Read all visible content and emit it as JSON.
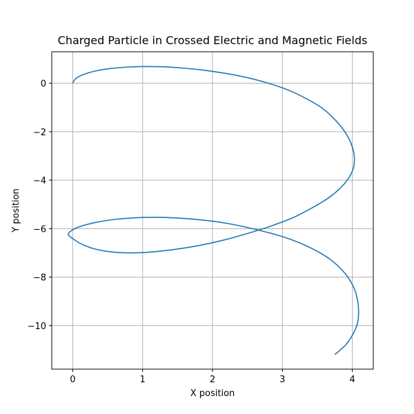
{
  "chart_data": {
    "type": "line",
    "title": "Charged Particle in Crossed Electric and Magnetic Fields",
    "xlabel": "X position",
    "ylabel": "Y position",
    "xlim": [
      -0.3,
      4.3
    ],
    "ylim": [
      -11.8,
      1.3
    ],
    "xticks": [
      0,
      1,
      2,
      3,
      4
    ],
    "xtick_labels": [
      "0",
      "1",
      "2",
      "3",
      "4"
    ],
    "yticks": [
      0,
      -2,
      -4,
      -6,
      -8,
      -10
    ],
    "ytick_labels": [
      "0",
      "−2",
      "−4",
      "−6",
      "−8",
      "−10"
    ],
    "grid": true,
    "series": [
      {
        "color": "#1f77b4",
        "x": [
          0.0,
          0.03,
          0.09,
          0.2,
          0.35,
          0.55,
          0.8,
          1.0,
          1.3,
          1.6,
          1.9,
          2.2,
          2.5,
          2.8,
          3.1,
          3.35,
          3.58,
          3.75,
          3.88,
          3.97,
          4.02,
          4.03,
          4.01,
          3.94,
          3.82,
          3.65,
          3.42,
          3.15,
          2.83,
          2.5,
          2.15,
          1.8,
          1.45,
          1.1,
          0.8,
          0.52,
          0.29,
          0.12,
          0.02,
          -0.05,
          -0.06,
          0.0,
          0.12,
          0.32,
          0.6,
          1.0,
          1.4,
          1.8,
          2.2,
          2.6,
          3.0,
          3.35,
          3.65,
          3.85,
          3.98,
          4.06,
          4.09,
          4.07,
          4.0,
          3.92,
          3.83,
          3.75
        ],
        "y": [
          0.0,
          0.15,
          0.28,
          0.41,
          0.52,
          0.61,
          0.67,
          0.69,
          0.68,
          0.62,
          0.53,
          0.4,
          0.23,
          0.0,
          -0.3,
          -0.65,
          -1.05,
          -1.5,
          -1.95,
          -2.4,
          -2.85,
          -3.2,
          -3.55,
          -3.95,
          -4.35,
          -4.75,
          -5.15,
          -5.55,
          -5.9,
          -6.2,
          -6.48,
          -6.7,
          -6.86,
          -6.97,
          -7.0,
          -6.95,
          -6.82,
          -6.63,
          -6.45,
          -6.3,
          -6.2,
          -6.05,
          -5.9,
          -5.75,
          -5.62,
          -5.54,
          -5.55,
          -5.63,
          -5.78,
          -6.02,
          -6.33,
          -6.72,
          -7.2,
          -7.7,
          -8.2,
          -8.75,
          -9.4,
          -9.95,
          -10.4,
          -10.75,
          -11.0,
          -11.2
        ]
      }
    ]
  }
}
